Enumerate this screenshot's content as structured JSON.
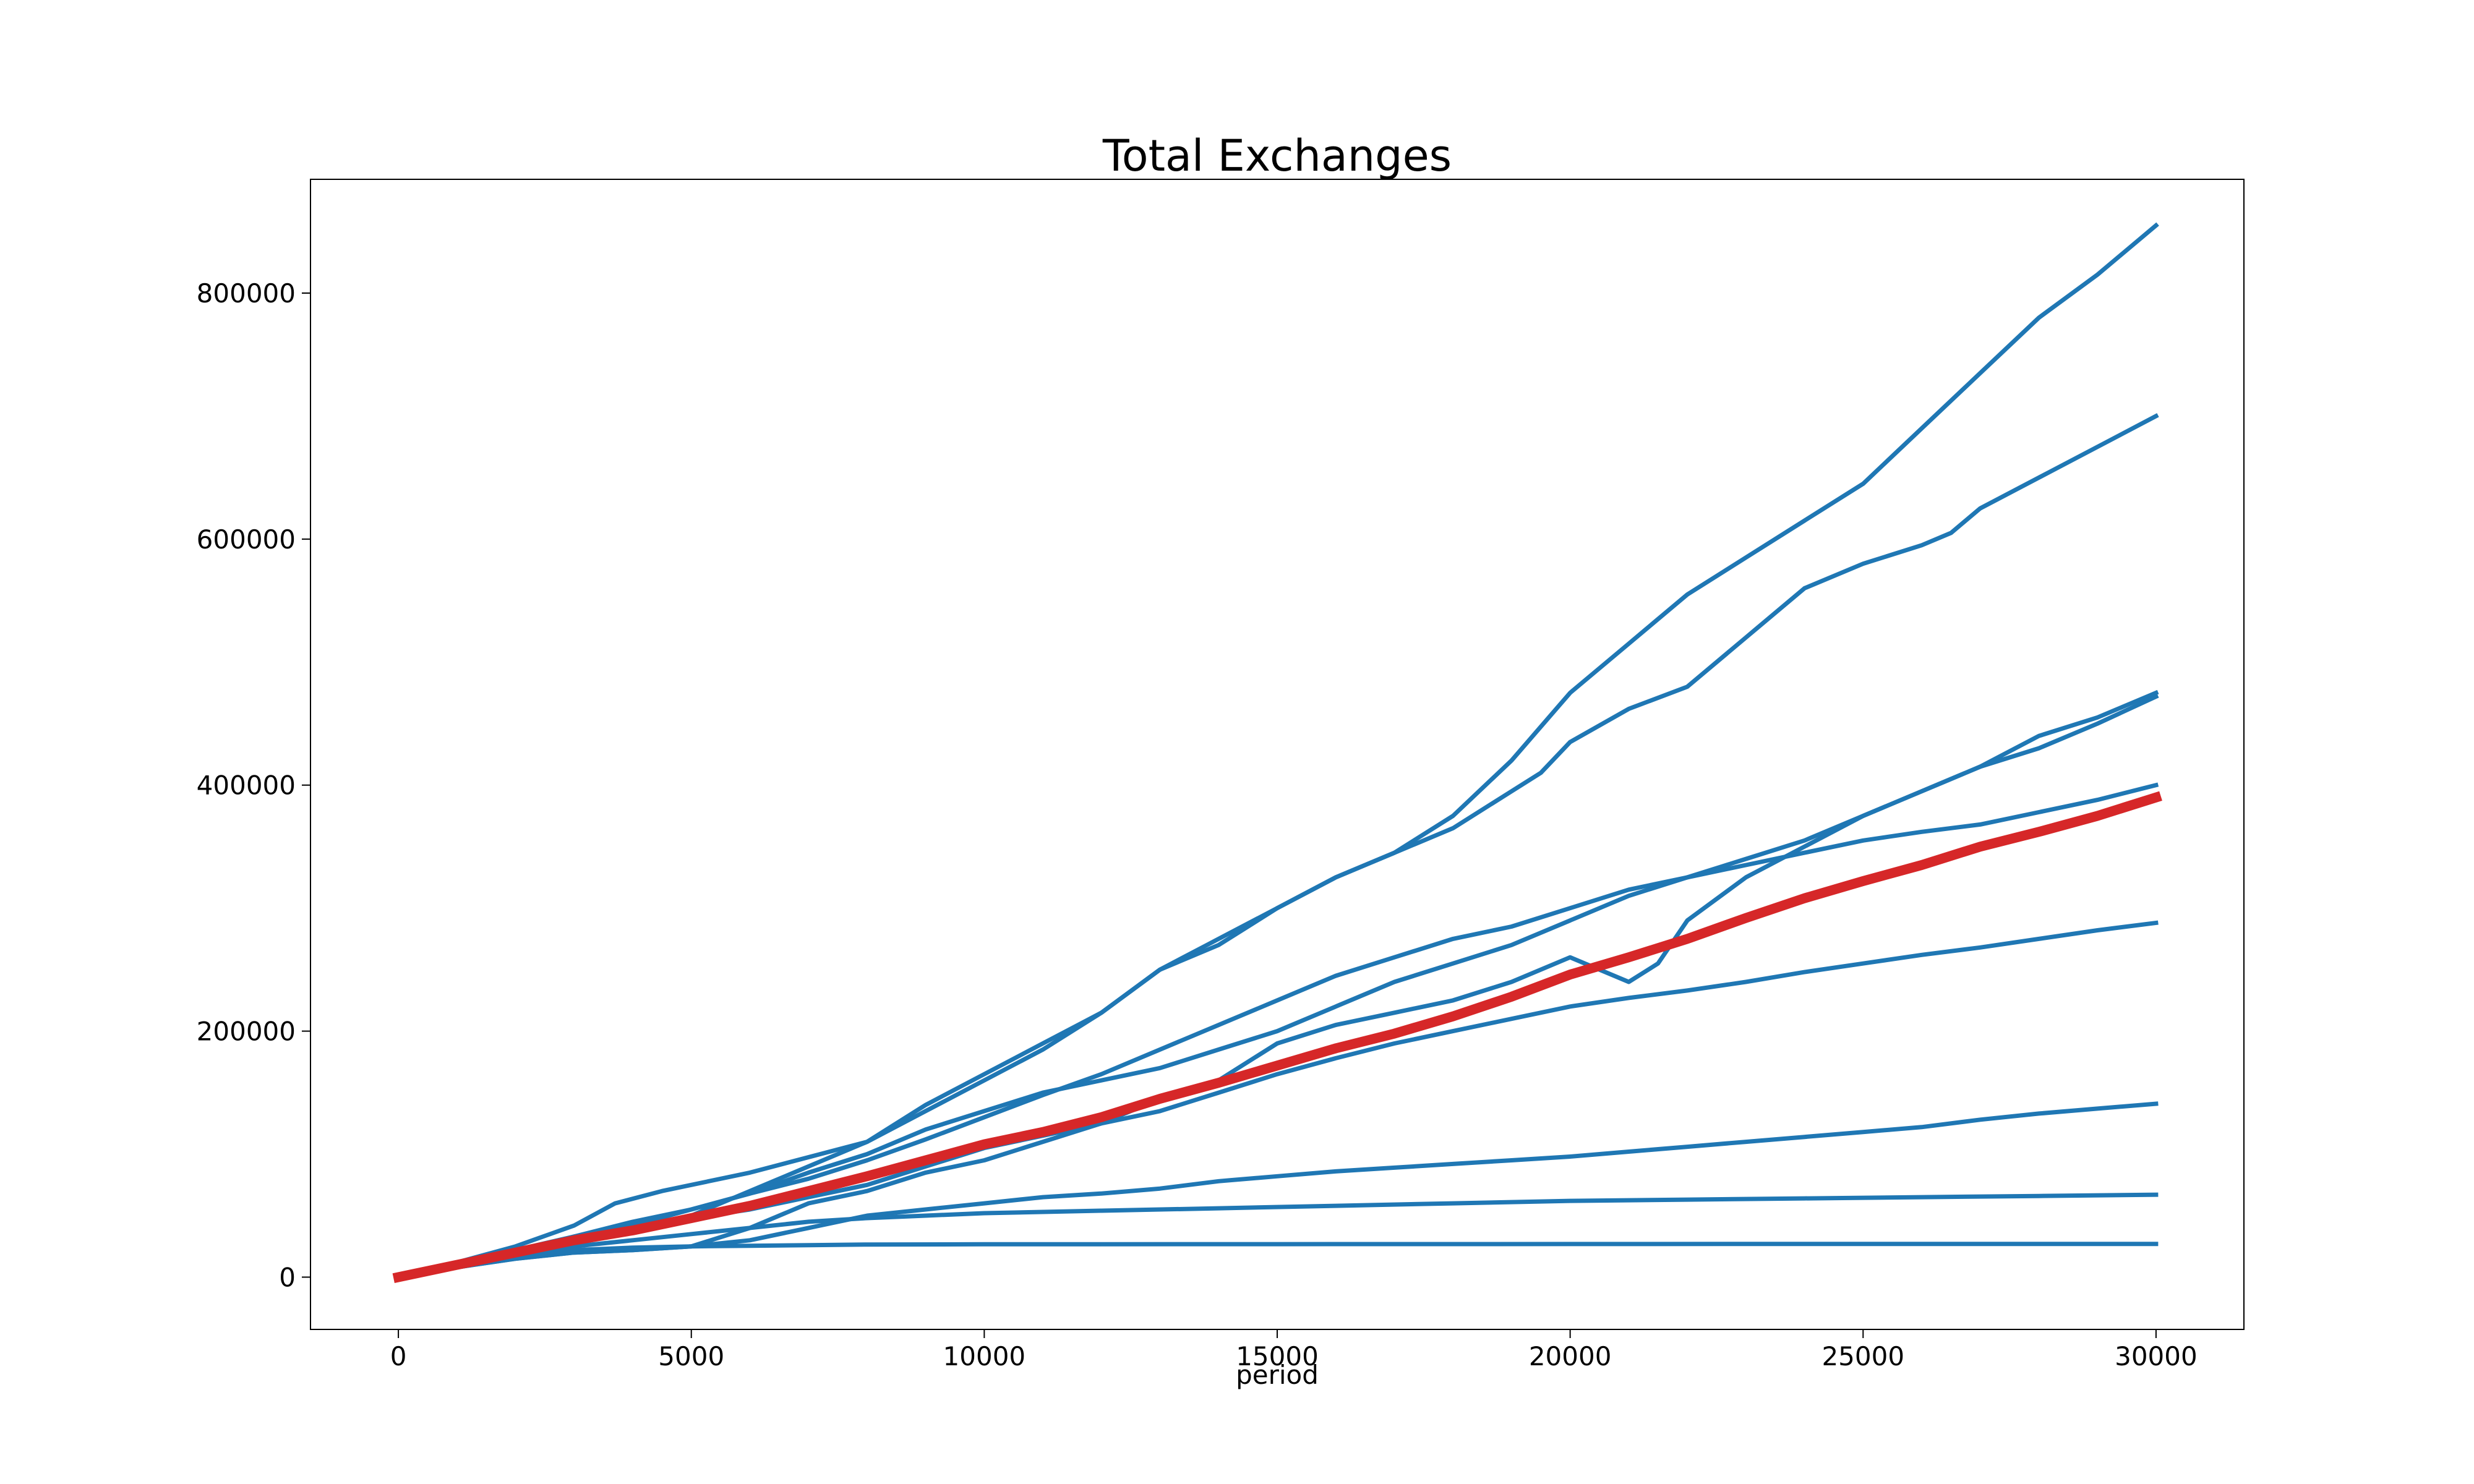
{
  "chart_data": {
    "type": "line",
    "title": "Total Exchanges",
    "xlabel": "period",
    "ylabel": "",
    "xlim": [
      -1500,
      31500
    ],
    "ylim": [
      -42500,
      892500
    ],
    "xticks": [
      0,
      5000,
      10000,
      15000,
      20000,
      25000,
      30000
    ],
    "yticks": [
      0,
      200000,
      400000,
      600000,
      800000
    ],
    "grid": false,
    "legend": "none",
    "colors": {
      "series": "#1f77b4",
      "mean": "#d62728"
    },
    "series": [
      {
        "x": [
          0,
          1000,
          2000,
          3000,
          3700,
          4500,
          6000,
          8000,
          9000,
          10000,
          11000,
          12000,
          13000,
          14000,
          15000,
          16000,
          17000,
          18000,
          19000,
          20000,
          21000,
          22000,
          23000,
          24000,
          25000,
          26000,
          27000,
          28000,
          29000,
          30000
        ],
        "y": [
          0,
          12000,
          25000,
          42000,
          60000,
          70000,
          85000,
          110000,
          140000,
          165000,
          190000,
          215000,
          250000,
          275000,
          300000,
          325000,
          345000,
          375000,
          420000,
          475000,
          515000,
          555000,
          585000,
          615000,
          645000,
          690000,
          735000,
          780000,
          815000,
          855000
        ]
      },
      {
        "x": [
          0,
          1000,
          2000,
          3000,
          4000,
          5000,
          6000,
          7000,
          8000,
          9000,
          10000,
          11000,
          12000,
          13000,
          14000,
          15000,
          16000,
          17000,
          18000,
          19000,
          19500,
          20000,
          21000,
          22000,
          23000,
          24000,
          25000,
          26000,
          26500,
          27000,
          28000,
          29000,
          30000
        ],
        "y": [
          0,
          10000,
          20000,
          30000,
          38000,
          50000,
          70000,
          90000,
          110000,
          135000,
          160000,
          185000,
          215000,
          250000,
          270000,
          300000,
          325000,
          345000,
          365000,
          395000,
          410000,
          435000,
          462000,
          480000,
          520000,
          560000,
          580000,
          595000,
          605000,
          625000,
          650000,
          675000,
          700000
        ]
      },
      {
        "x": [
          0,
          1000,
          2000,
          3000,
          4000,
          5000,
          6000,
          7000,
          8000,
          9000,
          10000,
          11000,
          12000,
          13000,
          14000,
          15000,
          16000,
          17000,
          18000,
          19000,
          20000,
          21000,
          21500,
          22000,
          23000,
          24000,
          25000,
          26000,
          27000,
          28000,
          29000,
          30000
        ],
        "y": [
          0,
          8000,
          15000,
          20000,
          22000,
          25000,
          40000,
          60000,
          70000,
          85000,
          95000,
          110000,
          125000,
          145000,
          160000,
          190000,
          205000,
          215000,
          225000,
          240000,
          260000,
          240000,
          255000,
          290000,
          325000,
          350000,
          375000,
          395000,
          415000,
          440000,
          455000,
          475000
        ]
      },
      {
        "x": [
          0,
          1000,
          2000,
          3000,
          4000,
          5000,
          6000,
          7000,
          8000,
          9000,
          10000,
          11000,
          12000,
          13000,
          14000,
          15000,
          16000,
          17000,
          18000,
          19000,
          20000,
          21000,
          22000,
          23000,
          24000,
          25000,
          26000,
          27000,
          28000,
          29000,
          30000
        ],
        "y": [
          0,
          8000,
          18000,
          30000,
          42000,
          55000,
          68000,
          85000,
          100000,
          120000,
          135000,
          150000,
          160000,
          170000,
          185000,
          200000,
          220000,
          240000,
          255000,
          270000,
          290000,
          310000,
          325000,
          340000,
          355000,
          375000,
          395000,
          415000,
          430000,
          450000,
          472000
        ]
      },
      {
        "x": [
          0,
          1000,
          2000,
          3000,
          4000,
          5000,
          6000,
          7000,
          8000,
          9000,
          10000,
          11000,
          12000,
          13000,
          14000,
          15000,
          16000,
          17000,
          18000,
          19000,
          20000,
          21000,
          22000,
          23000,
          24000,
          25000,
          26000,
          27000,
          28000,
          29000,
          30000
        ],
        "y": [
          0,
          10000,
          20000,
          33000,
          45000,
          55000,
          68000,
          80000,
          95000,
          112000,
          130000,
          148000,
          165000,
          185000,
          205000,
          225000,
          245000,
          260000,
          275000,
          285000,
          300000,
          315000,
          325000,
          335000,
          345000,
          355000,
          362000,
          368000,
          378000,
          388000,
          400000
        ]
      },
      {
        "x": [
          0,
          1000,
          2000,
          3000,
          4000,
          5000,
          6000,
          7000,
          8000,
          9000,
          10000,
          11000,
          12000,
          13000,
          14000,
          15000,
          16000,
          17000,
          18000,
          19000,
          20000,
          21000,
          22000,
          23000,
          24000,
          25000,
          26000,
          27000,
          28000,
          29000,
          30000
        ],
        "y": [
          0,
          12000,
          22000,
          33000,
          42000,
          48000,
          55000,
          65000,
          75000,
          90000,
          105000,
          115000,
          125000,
          135000,
          150000,
          165000,
          178000,
          190000,
          200000,
          210000,
          220000,
          227000,
          233000,
          240000,
          248000,
          255000,
          262000,
          268000,
          275000,
          282000,
          288000
        ]
      },
      {
        "x": [
          0,
          1000,
          2000,
          3000,
          4000,
          5000,
          6000,
          7000,
          8000,
          9000,
          10000,
          11000,
          12000,
          13000,
          14000,
          15000,
          16000,
          17000,
          18000,
          19000,
          20000,
          21000,
          22000,
          23000,
          24000,
          25000,
          26000,
          27000,
          28000,
          29000,
          30000
        ],
        "y": [
          0,
          8000,
          15000,
          20000,
          22000,
          25000,
          30000,
          40000,
          50000,
          55000,
          60000,
          65000,
          68000,
          72000,
          78000,
          82000,
          86000,
          89000,
          92000,
          95000,
          98000,
          102000,
          106000,
          110000,
          114000,
          118000,
          122000,
          128000,
          133000,
          137000,
          141000
        ]
      },
      {
        "x": [
          0,
          1000,
          2000,
          3000,
          4000,
          5000,
          6000,
          7000,
          8000,
          9000,
          10000,
          12000,
          14000,
          16000,
          18000,
          20000,
          22000,
          24000,
          26000,
          28000,
          30000
        ],
        "y": [
          0,
          10000,
          18000,
          25000,
          30000,
          35000,
          40000,
          45000,
          48000,
          50000,
          52000,
          54000,
          56000,
          58000,
          60000,
          62000,
          63000,
          64000,
          65000,
          66000,
          67000
        ]
      },
      {
        "x": [
          0,
          1000,
          2000,
          3000,
          4000,
          5000,
          6000,
          7000,
          8000,
          10000,
          15000,
          20000,
          25000,
          30000
        ],
        "y": [
          0,
          10000,
          18000,
          22000,
          24000,
          25000,
          25500,
          26000,
          26500,
          26700,
          26800,
          26900,
          27000,
          27000
        ]
      },
      {
        "name": "",
        "role": "mean",
        "x": [
          0,
          1000,
          2000,
          3000,
          4000,
          5000,
          6000,
          7000,
          8000,
          9000,
          10000,
          11000,
          12000,
          13000,
          14000,
          15000,
          16000,
          17000,
          18000,
          19000,
          20000,
          21000,
          22000,
          23000,
          24000,
          25000,
          26000,
          27000,
          28000,
          29000,
          30000
        ],
        "y": [
          0,
          10000,
          20000,
          30000,
          38000,
          48000,
          58000,
          70000,
          82000,
          95000,
          108000,
          118000,
          130000,
          145000,
          158000,
          172000,
          186000,
          198000,
          212000,
          228000,
          246000,
          260000,
          275000,
          292000,
          308000,
          322000,
          335000,
          350000,
          362000,
          375000,
          390000
        ]
      }
    ]
  }
}
